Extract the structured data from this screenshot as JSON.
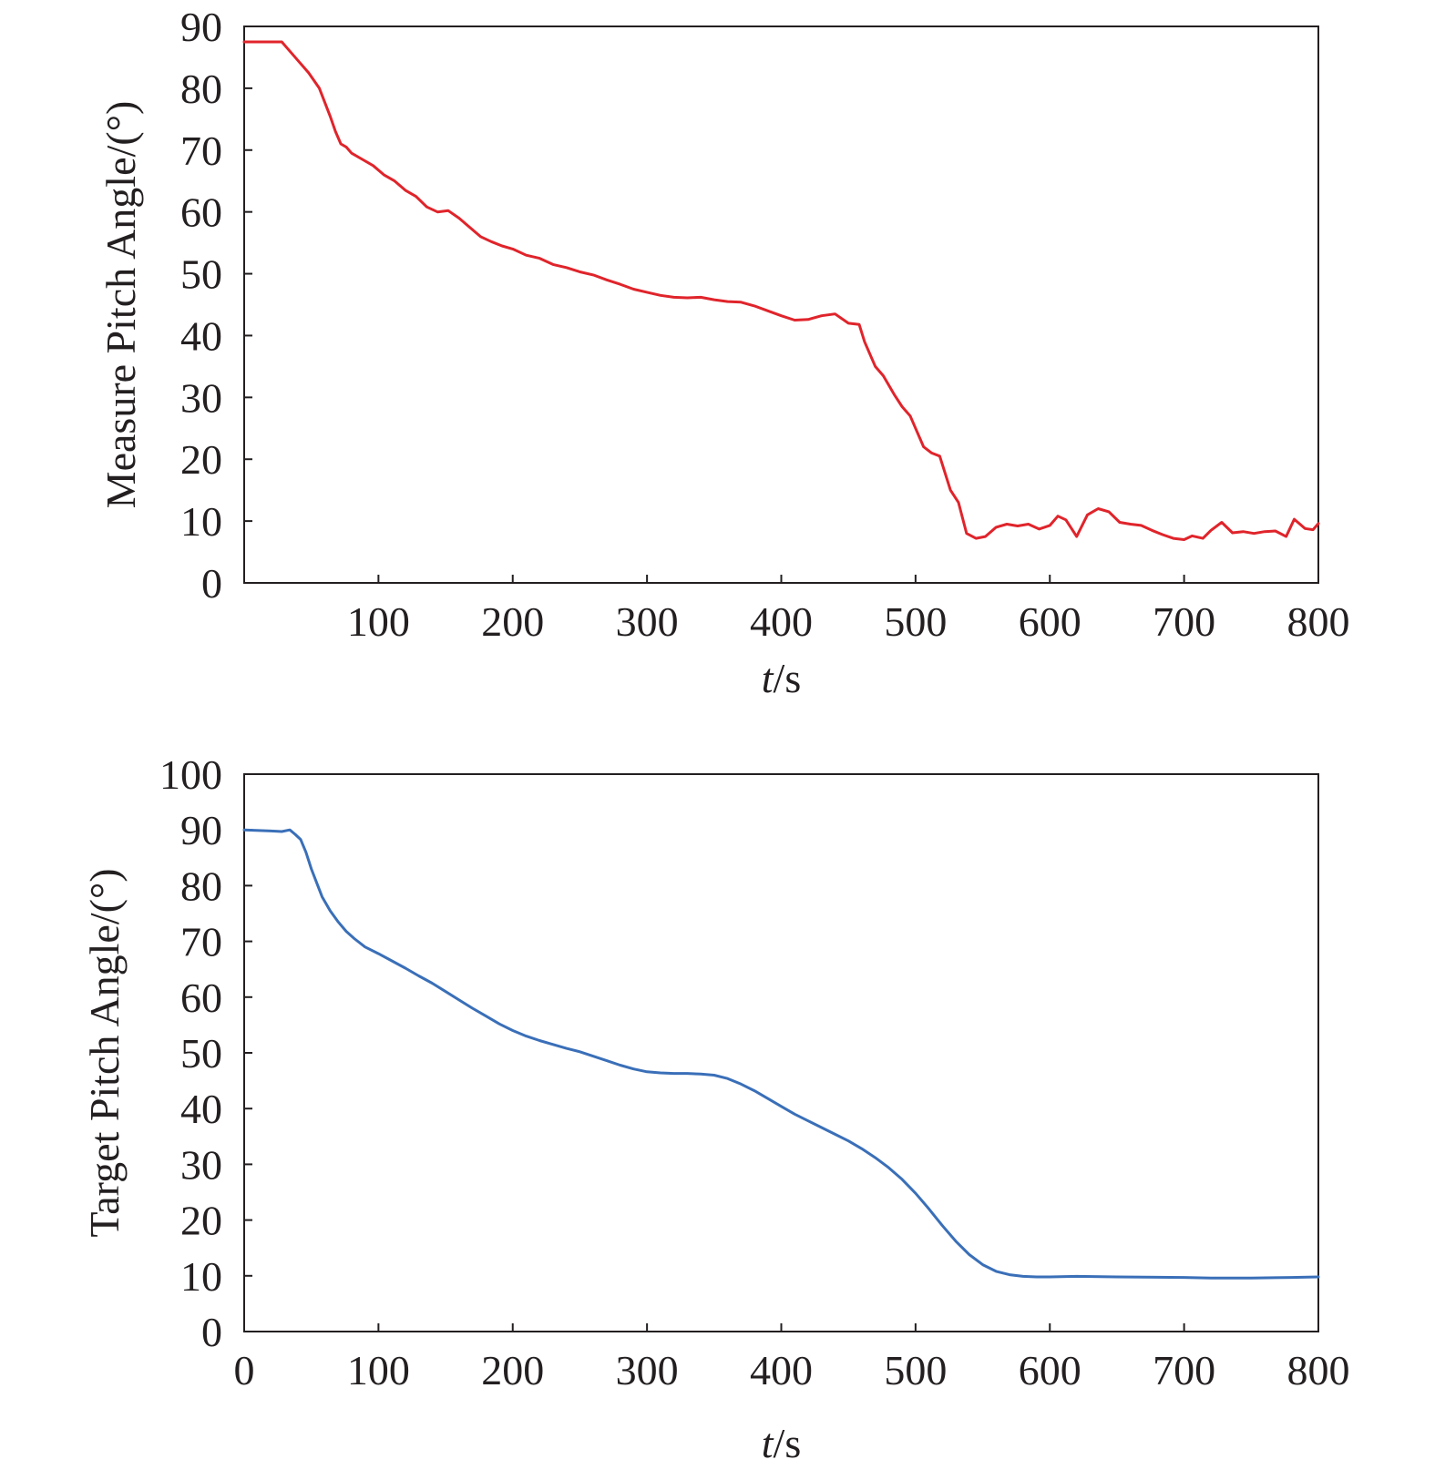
{
  "chart_data": [
    {
      "type": "line",
      "title": "",
      "xlabel_italic": "t",
      "xlabel_rest": "/s",
      "ylabel": "Measure Pitch Angle/(°)",
      "xlim": [
        0,
        800
      ],
      "ylim": [
        0,
        90
      ],
      "x_ticks": [
        "100",
        "200",
        "300",
        "400",
        "500",
        "600",
        "700",
        "800"
      ],
      "y_ticks": [
        "0",
        "10",
        "20",
        "30",
        "40",
        "50",
        "60",
        "70",
        "80",
        "90"
      ],
      "grid": false,
      "legend": "none",
      "series": [
        {
          "color": "#e0242b",
          "x": [
            0,
            28,
            32,
            40,
            48,
            56,
            64,
            68,
            72,
            76,
            80,
            88,
            96,
            104,
            112,
            120,
            128,
            136,
            144,
            152,
            160,
            168,
            176,
            184,
            192,
            200,
            210,
            220,
            230,
            240,
            250,
            260,
            270,
            280,
            290,
            300,
            310,
            320,
            330,
            340,
            350,
            360,
            370,
            380,
            390,
            400,
            410,
            420,
            430,
            440,
            450,
            458,
            462,
            466,
            470,
            476,
            484,
            490,
            496,
            500,
            506,
            512,
            518,
            526,
            532,
            538,
            545,
            552,
            560,
            568,
            576,
            584,
            592,
            600,
            606,
            612,
            620,
            628,
            636,
            644,
            652,
            660,
            668,
            676,
            684,
            692,
            700,
            706,
            714,
            720,
            728,
            736,
            744,
            752,
            760,
            768,
            776,
            782,
            790,
            796,
            800
          ],
          "y": [
            87.5,
            87.5,
            86.5,
            84.5,
            82.5,
            80,
            75.5,
            73,
            71,
            70.5,
            69.5,
            68.5,
            67.5,
            66,
            65,
            63.5,
            62.5,
            60.8,
            60,
            60.2,
            59,
            57.5,
            56,
            55.2,
            54.5,
            54,
            53,
            52.5,
            51.5,
            51,
            50.3,
            49.8,
            49,
            48.3,
            47.5,
            47,
            46.5,
            46.2,
            46.1,
            46.2,
            45.8,
            45.5,
            45.4,
            44.8,
            44,
            43.2,
            42.5,
            42.6,
            43.2,
            43.5,
            42,
            41.8,
            39,
            37,
            35,
            33.5,
            30.5,
            28.5,
            27,
            25,
            22,
            21,
            20.5,
            15,
            13,
            8,
            7.2,
            7.5,
            9,
            9.5,
            9.2,
            9.5,
            8.7,
            9.3,
            10.8,
            10.2,
            7.5,
            11,
            12,
            11.5,
            9.8,
            9.5,
            9.3,
            8.5,
            7.8,
            7.2,
            7,
            7.6,
            7.2,
            8.5,
            9.8,
            8.1,
            8.3,
            8,
            8.3,
            8.4,
            7.5,
            10.3,
            8.8,
            8.6,
            9.6
          ]
        }
      ]
    },
    {
      "type": "line",
      "title": "",
      "xlabel_italic": "t",
      "xlabel_rest": "/s",
      "ylabel": "Target Pitch Angle/(°)",
      "xlim": [
        0,
        800
      ],
      "ylim": [
        0,
        100
      ],
      "x_ticks": [
        "0",
        "100",
        "200",
        "300",
        "400",
        "500",
        "600",
        "700",
        "800"
      ],
      "y_ticks": [
        "0",
        "10",
        "20",
        "30",
        "40",
        "50",
        "60",
        "70",
        "80",
        "90",
        "100"
      ],
      "grid": false,
      "legend": "none",
      "series": [
        {
          "color": "#3a6fb8",
          "x": [
            0,
            20,
            28,
            34,
            38,
            42,
            46,
            50,
            54,
            58,
            64,
            70,
            76,
            82,
            90,
            100,
            110,
            120,
            130,
            140,
            150,
            160,
            170,
            180,
            190,
            200,
            210,
            220,
            230,
            240,
            250,
            260,
            270,
            280,
            290,
            300,
            310,
            320,
            330,
            340,
            350,
            360,
            370,
            380,
            390,
            400,
            410,
            420,
            430,
            440,
            450,
            460,
            470,
            480,
            490,
            500,
            510,
            520,
            530,
            540,
            550,
            560,
            570,
            580,
            590,
            600,
            620,
            650,
            700,
            720,
            750,
            780,
            800
          ],
          "y": [
            90,
            89.8,
            89.7,
            90,
            89.2,
            88.3,
            86,
            83,
            80.5,
            78,
            75.5,
            73.5,
            71.8,
            70.5,
            69,
            67.8,
            66.5,
            65.2,
            63.8,
            62.5,
            61,
            59.5,
            58,
            56.6,
            55.2,
            54,
            53,
            52.2,
            51.5,
            50.8,
            50.2,
            49.4,
            48.6,
            47.8,
            47.1,
            46.6,
            46.4,
            46.3,
            46.3,
            46.2,
            46,
            45.4,
            44.4,
            43.2,
            41.8,
            40.4,
            39,
            37.8,
            36.6,
            35.4,
            34.2,
            32.8,
            31.2,
            29.4,
            27.3,
            24.8,
            22,
            19,
            16.2,
            13.8,
            12,
            10.8,
            10.2,
            9.9,
            9.8,
            9.8,
            9.9,
            9.8,
            9.7,
            9.6,
            9.6,
            9.7,
            9.8
          ]
        }
      ]
    }
  ]
}
